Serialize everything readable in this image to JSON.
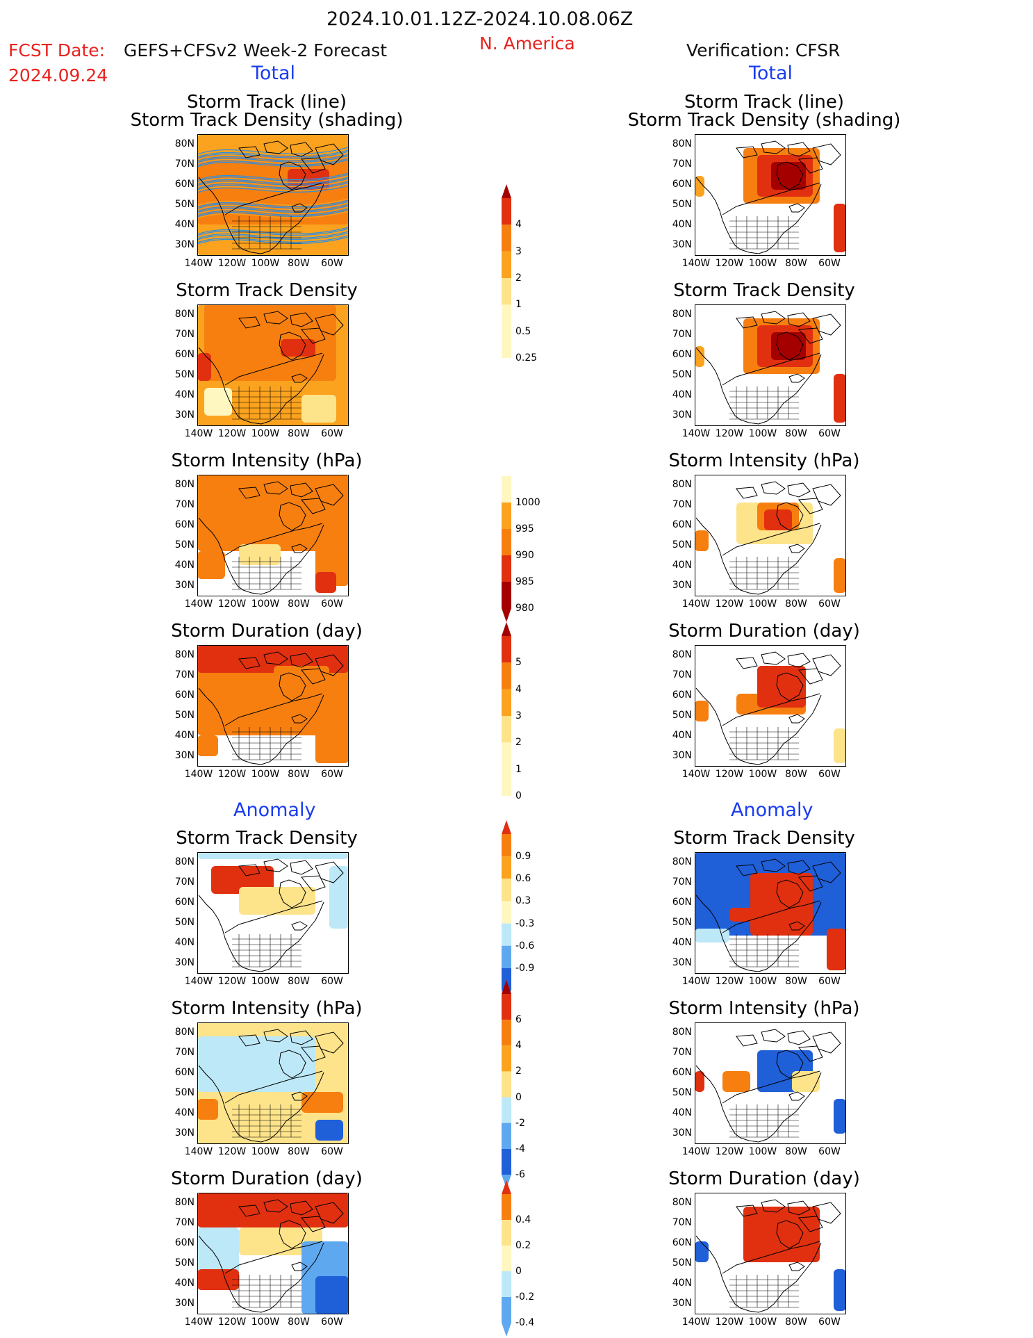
{
  "header": {
    "date_range": "2024.10.01.12Z-2024.10.08.06Z",
    "region": "N. America",
    "fcst_label": "FCST Date:",
    "fcst_model": "GEFS+CFSv2 Week-2 Forecast",
    "fcst_date": "2024.09.24",
    "verification": "Verification: CFSR"
  },
  "sections": {
    "total": "Total",
    "anomaly": "Anomaly"
  },
  "panel_titles": {
    "p1_line1": "Storm Track (line)",
    "p1_line2": "Storm Track Density (shading)",
    "density": "Storm Track Density",
    "intensity": "Storm Intensity (hPa)",
    "duration": "Storm Duration (day)"
  },
  "axes": {
    "lat_labels": [
      "80N",
      "70N",
      "60N",
      "50N",
      "40N",
      "30N"
    ],
    "lon_labels": [
      "140W",
      "120W",
      "100W",
      "80W",
      "60W"
    ]
  },
  "colorbars": {
    "density": [
      "4",
      "3",
      "2",
      "1",
      "0.5",
      "0.25"
    ],
    "intensity": [
      "1000",
      "995",
      "990",
      "985",
      "980"
    ],
    "duration": [
      "5",
      "4",
      "3",
      "2",
      "1",
      "0"
    ],
    "density_anom": [
      "0.9",
      "0.6",
      "0.3",
      "-0.3",
      "-0.6",
      "-0.9"
    ],
    "intensity_anom": [
      "6",
      "4",
      "2",
      "0",
      "-2",
      "-4",
      "-6"
    ],
    "duration_anom": [
      "0.4",
      "0.2",
      "0",
      "-0.2",
      "-0.4"
    ]
  },
  "colors": {
    "header_red": "#e8231f",
    "section_blue": "#1a3cf0",
    "dark_red": "#a50000",
    "red": "#e03010",
    "orange": "#f77f10",
    "light_orange": "#fba21e",
    "yellow": "#fde38a",
    "pale_yellow": "#fff7c0",
    "light_blue": "#bde8f8",
    "mid_blue": "#5ea8f0",
    "dark_blue": "#1f5fd8",
    "track_blue": "#2e8fe0"
  }
}
